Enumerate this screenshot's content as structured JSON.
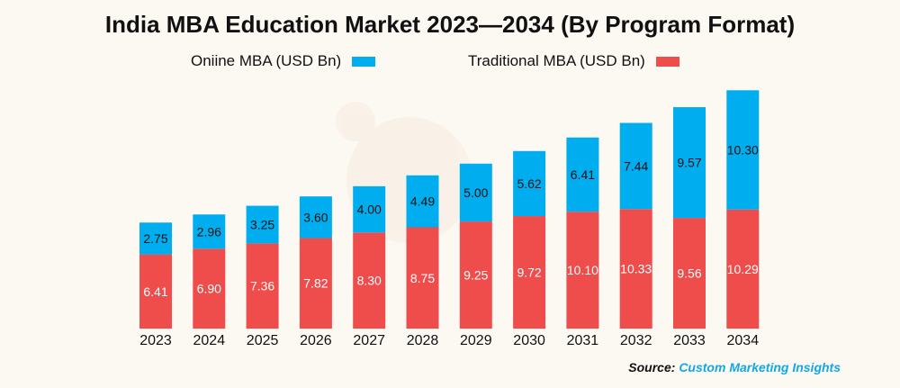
{
  "chart_data": {
    "type": "bar",
    "stacked": true,
    "title": "India MBA Education Market 2023—2034 (By Program Format)",
    "categories": [
      "2023",
      "2024",
      "2025",
      "2026",
      "2027",
      "2028",
      "2029",
      "2030",
      "2031",
      "2032",
      "2033",
      "2034"
    ],
    "series": [
      {
        "name": "Traditional MBA (USD Bn)",
        "color": "#ef4c4c",
        "values": [
          6.41,
          6.9,
          7.36,
          7.82,
          8.3,
          8.75,
          9.25,
          9.72,
          10.1,
          10.33,
          9.56,
          10.29
        ]
      },
      {
        "name": "Oniine MBA (USD Bn)",
        "color": "#00aeef",
        "values": [
          2.75,
          2.96,
          3.25,
          3.6,
          4.0,
          4.49,
          5.0,
          5.62,
          6.41,
          7.44,
          9.57,
          10.3
        ]
      }
    ],
    "xlabel": "",
    "ylabel": "",
    "ylim": [
      0,
      21
    ],
    "grid": false,
    "legend_placement": "top",
    "data_labels": true
  },
  "source": {
    "label": "Source:",
    "name": "Custom Marketing Insights"
  }
}
